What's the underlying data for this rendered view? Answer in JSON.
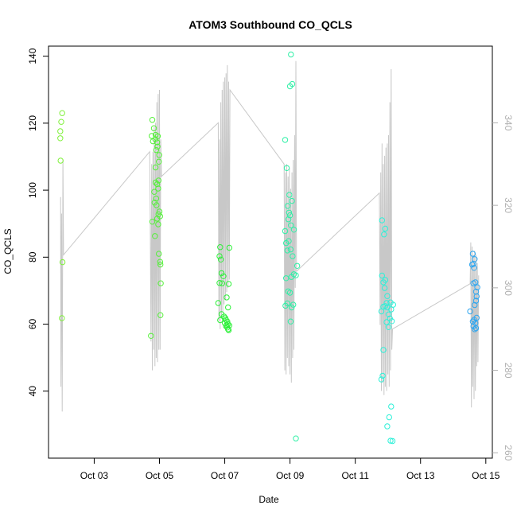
{
  "chart_data": {
    "type": "scatter",
    "title": "ATOM3 Southbound CO_QCLS",
    "xlabel": "Date",
    "ylabel": "CO_QCLS",
    "x_unit": "date (October)",
    "xlim": [
      1.6,
      15.2
    ],
    "ylim": [
      20,
      143
    ],
    "x_ticks": [
      {
        "value": 3,
        "label": "Oct 03"
      },
      {
        "value": 5,
        "label": "Oct 05"
      },
      {
        "value": 7,
        "label": "Oct 07"
      },
      {
        "value": 9,
        "label": "Oct 09"
      },
      {
        "value": 11,
        "label": "Oct 11"
      },
      {
        "value": 13,
        "label": "Oct 13"
      },
      {
        "value": 15,
        "label": "Oct 15"
      }
    ],
    "y_ticks": [
      40,
      60,
      80,
      100,
      120,
      140
    ],
    "secondary_axis": {
      "side": "right",
      "color": "#b0b0b0",
      "ylim": [
        258.7,
        358.6
      ],
      "ticks": [
        260,
        280,
        300,
        320,
        340
      ]
    },
    "grid": false,
    "legend": "none",
    "series": [
      {
        "color": "#7ff03a",
        "points": [
          [
            2.02,
            123
          ],
          [
            1.99,
            120.4
          ],
          [
            1.96,
            117.6
          ],
          [
            1.96,
            115.5
          ],
          [
            1.97,
            108.8
          ],
          [
            2.03,
            78.5
          ],
          [
            2.01,
            61.8
          ]
        ]
      },
      {
        "color": "#55f03a",
        "points": [
          [
            4.78,
            121
          ],
          [
            4.83,
            118.5
          ],
          [
            4.88,
            116.5
          ],
          [
            4.76,
            116.2
          ],
          [
            4.95,
            116.1
          ],
          [
            4.87,
            115.2
          ],
          [
            4.8,
            114.6
          ],
          [
            4.93,
            114.3
          ],
          [
            4.94,
            113
          ],
          [
            4.9,
            112
          ],
          [
            4.99,
            110.5
          ],
          [
            4.98,
            108.5
          ],
          [
            4.88,
            106.8
          ],
          [
            4.97,
            102.9
          ],
          [
            4.88,
            102.3
          ],
          [
            4.93,
            101.8
          ],
          [
            4.96,
            100.5
          ],
          [
            4.84,
            99.5
          ],
          [
            4.9,
            97.5
          ],
          [
            4.85,
            96.3
          ],
          [
            4.91,
            95.5
          ],
          [
            5.0,
            93.6
          ],
          [
            4.97,
            92.8
          ],
          [
            5.02,
            92.2
          ],
          [
            4.93,
            91.5
          ],
          [
            4.78,
            90.6
          ],
          [
            4.96,
            89.8
          ],
          [
            4.86,
            86.3
          ],
          [
            4.98,
            81
          ],
          [
            5.02,
            78.6
          ],
          [
            5.03,
            77.8
          ],
          [
            5.04,
            72.2
          ],
          [
            5.03,
            62.7
          ],
          [
            4.74,
            56.5
          ]
        ]
      },
      {
        "color": "#2ef03a",
        "points": [
          [
            6.86,
            83
          ],
          [
            7.14,
            82.8
          ],
          [
            6.84,
            80.3
          ],
          [
            6.88,
            79.3
          ],
          [
            6.9,
            75.2
          ],
          [
            6.96,
            74.3
          ],
          [
            6.84,
            72.3
          ],
          [
            6.92,
            72.2
          ],
          [
            7.12,
            72
          ],
          [
            7.06,
            68
          ],
          [
            6.8,
            66.3
          ],
          [
            7.1,
            65
          ],
          [
            6.9,
            63
          ],
          [
            6.98,
            62.3
          ],
          [
            7.02,
            61.8
          ],
          [
            7.04,
            61.3
          ],
          [
            6.86,
            61.2
          ],
          [
            7.08,
            60.8
          ],
          [
            7.0,
            60.3
          ],
          [
            7.1,
            60
          ],
          [
            7.06,
            59.8
          ],
          [
            7.14,
            59.6
          ],
          [
            7.04,
            59.4
          ],
          [
            7.08,
            59
          ],
          [
            7.1,
            58.5
          ],
          [
            7.12,
            58.2
          ]
        ]
      },
      {
        "color": "#2ef0a6",
        "points": [
          [
            9.03,
            140.5
          ],
          [
            9.07,
            131.7
          ],
          [
            9.0,
            131
          ],
          [
            8.85,
            115
          ],
          [
            8.9,
            106.6
          ],
          [
            8.98,
            98.6
          ],
          [
            9.06,
            96.8
          ],
          [
            8.93,
            95.3
          ],
          [
            8.97,
            93.3
          ],
          [
            9.0,
            92.5
          ],
          [
            8.95,
            91.3
          ],
          [
            9.03,
            89.5
          ],
          [
            8.85,
            87.8
          ],
          [
            9.12,
            88.2
          ],
          [
            8.96,
            84.8
          ],
          [
            8.88,
            84.2
          ],
          [
            9.02,
            82.3
          ],
          [
            8.92,
            82
          ],
          [
            9.08,
            80.3
          ],
          [
            9.22,
            77.4
          ],
          [
            9.12,
            74.9
          ],
          [
            9.18,
            74.6
          ],
          [
            9.04,
            74.1
          ],
          [
            8.88,
            73.7
          ],
          [
            8.94,
            69.8
          ],
          [
            9.0,
            69.4
          ],
          [
            8.92,
            66.2
          ],
          [
            9.1,
            65.8
          ],
          [
            8.86,
            65.5
          ],
          [
            9.05,
            65
          ],
          [
            9.02,
            60.8
          ],
          [
            9.18,
            25.9
          ]
        ]
      },
      {
        "color": "#2ef0d8",
        "points": [
          [
            11.82,
            91
          ],
          [
            11.92,
            88.5
          ],
          [
            11.88,
            86.8
          ],
          [
            11.82,
            74.5
          ],
          [
            11.92,
            73.2
          ],
          [
            11.86,
            72.5
          ],
          [
            11.9,
            70.8
          ],
          [
            11.98,
            68.4
          ],
          [
            12.08,
            66.5
          ],
          [
            11.96,
            66.3
          ],
          [
            11.92,
            65.4
          ],
          [
            11.86,
            65.2
          ],
          [
            12.16,
            65.8
          ],
          [
            11.98,
            65
          ],
          [
            12.1,
            64.4
          ],
          [
            11.8,
            63.8
          ],
          [
            12.02,
            62.9
          ],
          [
            12.06,
            61.7
          ],
          [
            12.12,
            60.9
          ],
          [
            11.96,
            60.6
          ],
          [
            12.02,
            59.1
          ],
          [
            11.86,
            52.3
          ],
          [
            11.84,
            44.6
          ],
          [
            11.8,
            43.5
          ],
          [
            12.1,
            35.4
          ],
          [
            12.04,
            32.2
          ],
          [
            11.98,
            29.5
          ],
          [
            12.08,
            25.2
          ],
          [
            12.14,
            25.1
          ]
        ]
      },
      {
        "color": "#2ea6f0",
        "points": [
          [
            14.6,
            81
          ],
          [
            14.66,
            79.4
          ],
          [
            14.62,
            78
          ],
          [
            14.58,
            77.8
          ],
          [
            14.64,
            76.8
          ],
          [
            14.68,
            72.5
          ],
          [
            14.62,
            72.2
          ],
          [
            14.74,
            71
          ],
          [
            14.7,
            69.7
          ],
          [
            14.72,
            68.3
          ],
          [
            14.7,
            67
          ],
          [
            14.66,
            65.7
          ],
          [
            14.52,
            63.8
          ],
          [
            14.64,
            61.3
          ],
          [
            14.72,
            61.9
          ],
          [
            14.6,
            60.8
          ],
          [
            14.68,
            60.3
          ],
          [
            14.62,
            59.4
          ],
          [
            14.7,
            58.8
          ],
          [
            14.66,
            58.5
          ]
        ]
      }
    ],
    "secondary_line": {
      "color": "#c8c8c8",
      "points": [
        [
          1.97,
          322
        ],
        [
          1.98,
          276
        ],
        [
          2.0,
          318
        ],
        [
          2.02,
          270
        ],
        [
          2.04,
          331
        ],
        [
          2.06,
          308
        ],
        [
          4.7,
          333
        ],
        [
          4.72,
          314
        ],
        [
          4.74,
          287
        ],
        [
          4.76,
          330
        ],
        [
          4.78,
          280
        ],
        [
          4.8,
          333
        ],
        [
          4.82,
          285
        ],
        [
          4.84,
          339
        ],
        [
          4.86,
          281
        ],
        [
          4.88,
          340
        ],
        [
          4.9,
          283
        ],
        [
          4.92,
          345
        ],
        [
          4.94,
          282
        ],
        [
          4.96,
          347
        ],
        [
          4.98,
          285
        ],
        [
          5.0,
          348
        ],
        [
          5.02,
          285
        ],
        [
          5.04,
          336
        ],
        [
          5.06,
          327
        ],
        [
          6.8,
          340
        ],
        [
          6.82,
          292
        ],
        [
          6.84,
          336
        ],
        [
          6.86,
          290
        ],
        [
          6.88,
          345
        ],
        [
          6.9,
          293
        ],
        [
          6.92,
          348
        ],
        [
          6.94,
          294
        ],
        [
          6.96,
          350
        ],
        [
          6.98,
          296
        ],
        [
          7.0,
          351
        ],
        [
          7.02,
          297
        ],
        [
          7.04,
          352
        ],
        [
          7.06,
          299
        ],
        [
          7.08,
          354
        ],
        [
          7.1,
          300
        ],
        [
          7.12,
          350
        ],
        [
          7.14,
          302
        ],
        [
          7.16,
          348
        ],
        [
          8.82,
          330
        ],
        [
          8.84,
          280
        ],
        [
          8.86,
          328
        ],
        [
          8.88,
          279
        ],
        [
          8.9,
          330
        ],
        [
          8.92,
          283
        ],
        [
          8.94,
          327
        ],
        [
          8.96,
          281
        ],
        [
          8.98,
          329
        ],
        [
          9.0,
          279
        ],
        [
          9.02,
          324
        ],
        [
          9.04,
          277
        ],
        [
          9.06,
          328
        ],
        [
          9.08,
          283
        ],
        [
          9.1,
          331
        ],
        [
          9.12,
          285
        ],
        [
          9.14,
          337
        ],
        [
          9.16,
          300
        ],
        [
          9.18,
          355
        ],
        [
          9.2,
          304
        ],
        [
          11.74,
          323
        ],
        [
          11.76,
          291
        ],
        [
          11.78,
          328
        ],
        [
          11.8,
          275
        ],
        [
          11.82,
          335
        ],
        [
          11.84,
          277
        ],
        [
          11.86,
          330
        ],
        [
          11.88,
          274
        ],
        [
          11.9,
          332
        ],
        [
          11.92,
          276
        ],
        [
          11.94,
          334
        ],
        [
          11.96,
          275
        ],
        [
          11.98,
          335
        ],
        [
          12.0,
          279
        ],
        [
          12.02,
          337
        ],
        [
          12.04,
          276
        ],
        [
          12.06,
          345
        ],
        [
          12.08,
          280
        ],
        [
          12.1,
          353
        ],
        [
          12.12,
          285
        ],
        [
          12.14,
          290
        ],
        [
          14.52,
          301
        ],
        [
          14.54,
          311
        ],
        [
          14.56,
          271
        ],
        [
          14.58,
          310
        ],
        [
          14.6,
          276
        ],
        [
          14.62,
          308
        ],
        [
          14.64,
          273
        ],
        [
          14.66,
          309
        ],
        [
          14.68,
          275
        ],
        [
          14.7,
          308
        ],
        [
          14.72,
          281
        ],
        [
          14.74,
          306
        ],
        [
          14.76,
          282
        ],
        [
          14.78,
          303
        ]
      ]
    }
  }
}
